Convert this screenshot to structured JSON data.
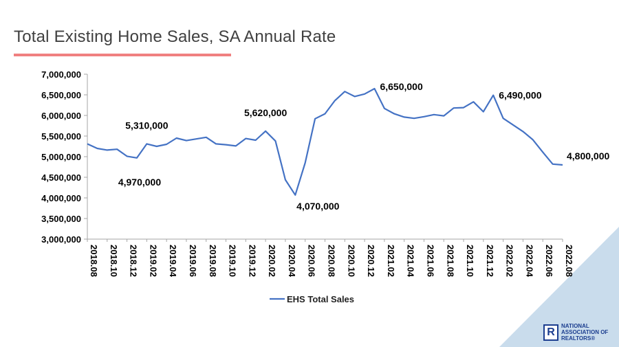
{
  "header": {
    "title": "Total Existing Home Sales, SA Annual Rate"
  },
  "branding": {
    "logo_mark": "R",
    "logo_line1": "NATIONAL",
    "logo_line2": "ASSOCIATION OF",
    "logo_line3": "REALTORS®"
  },
  "colors": {
    "series": "#4472c4",
    "title_rule": "#f08080",
    "corner": "#c9dcec",
    "logo": "#1b3d8f"
  },
  "chart_data": {
    "type": "line",
    "title": "",
    "xlabel": "",
    "ylabel": "",
    "ylim": [
      3000000,
      7000000
    ],
    "yticks": [
      3000000,
      3500000,
      4000000,
      4500000,
      5000000,
      5500000,
      6000000,
      6500000,
      7000000
    ],
    "ytick_labels": [
      "3,000,000",
      "3,500,000",
      "4,000,000",
      "4,500,000",
      "5,000,000",
      "5,500,000",
      "6,000,000",
      "6,500,000",
      "7,000,000"
    ],
    "x": [
      "2018.08",
      "2018.09",
      "2018.10",
      "2018.11",
      "2018.12",
      "2019.01",
      "2019.02",
      "2019.03",
      "2019.04",
      "2019.05",
      "2019.06",
      "2019.07",
      "2019.08",
      "2019.09",
      "2019.10",
      "2019.11",
      "2019.12",
      "2020.01",
      "2020.02",
      "2020.03",
      "2020.04",
      "2020.05",
      "2020.06",
      "2020.07",
      "2020.08",
      "2020.09",
      "2020.10",
      "2020.11",
      "2020.12",
      "2021.01",
      "2021.02",
      "2021.03",
      "2021.04",
      "2021.05",
      "2021.06",
      "2021.07",
      "2021.08",
      "2021.09",
      "2021.10",
      "2021.11",
      "2021.12",
      "2022.01",
      "2022.02",
      "2022.03",
      "2022.04",
      "2022.05",
      "2022.06",
      "2022.07",
      "2022.08"
    ],
    "xtick_labels": [
      "2018.08",
      "2018.10",
      "2018.12",
      "2019.02",
      "2019.04",
      "2019.06",
      "2019.08",
      "2019.10",
      "2019.12",
      "2020.02",
      "2020.04",
      "2020.06",
      "2020.08",
      "2020.10",
      "2020.12",
      "2021.02",
      "2021.04",
      "2021.06",
      "2021.08",
      "2021.10",
      "2021.12",
      "2022.02",
      "2022.04",
      "2022.06",
      "2022.08"
    ],
    "series": [
      {
        "name": "EHS Total Sales",
        "values": [
          5310000,
          5200000,
          5160000,
          5180000,
          5010000,
          4970000,
          5310000,
          5250000,
          5300000,
          5450000,
          5390000,
          5430000,
          5470000,
          5310000,
          5290000,
          5260000,
          5440000,
          5400000,
          5620000,
          5380000,
          4440000,
          4070000,
          4850000,
          5920000,
          6040000,
          6360000,
          6580000,
          6460000,
          6520000,
          6650000,
          6170000,
          6040000,
          5960000,
          5930000,
          5970000,
          6020000,
          5990000,
          6180000,
          6190000,
          6330000,
          6090000,
          6490000,
          5930000,
          5770000,
          5610000,
          5410000,
          5110000,
          4820000,
          4800000
        ]
      }
    ],
    "annotations": [
      {
        "index": 6,
        "text": "5,310,000",
        "pos": "above"
      },
      {
        "index": 5,
        "text": "4,970,000",
        "pos": "below"
      },
      {
        "index": 18,
        "text": "5,620,000",
        "pos": "above"
      },
      {
        "index": 21,
        "text": "4,070,000",
        "pos": "below"
      },
      {
        "index": 29,
        "text": "6,650,000",
        "pos": "right"
      },
      {
        "index": 41,
        "text": "6,490,000",
        "pos": "right"
      },
      {
        "index": 48,
        "text": "4,800,000",
        "pos": "right"
      }
    ],
    "legend": "bottom-center",
    "grid": false
  }
}
